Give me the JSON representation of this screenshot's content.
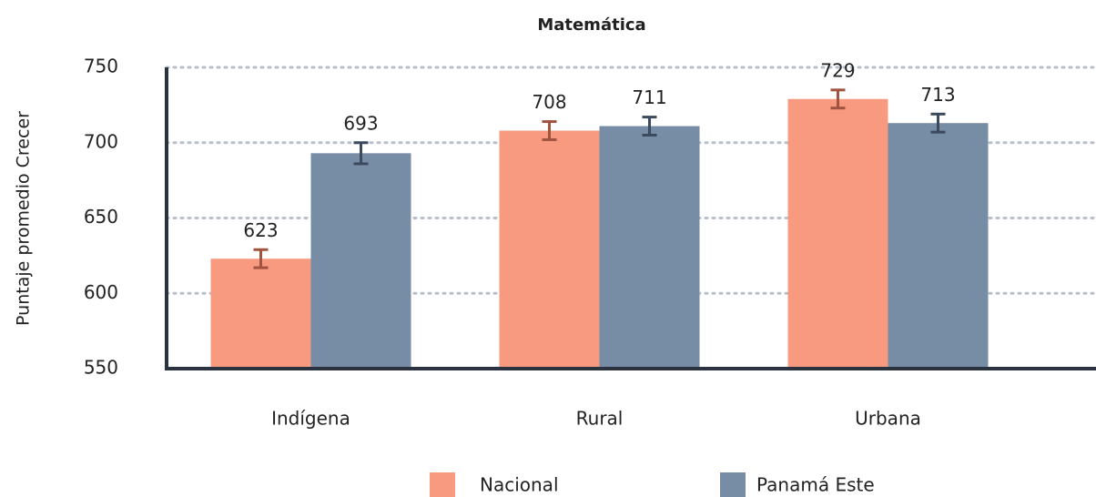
{
  "chart_data": {
    "type": "bar",
    "title": "Matemática",
    "y_label": "Puntaje promedio Crecer",
    "categories": [
      "Indígena",
      "Rural",
      "Urbana"
    ],
    "series": [
      {
        "name": "Nacional",
        "color": "#f79a80",
        "error_color": "#a0533f",
        "values": [
          623,
          708,
          729
        ],
        "errors": [
          6,
          6,
          6
        ]
      },
      {
        "name": "Panamá Este",
        "color": "#778ca5",
        "error_color": "#3b4a5d",
        "values": [
          693,
          711,
          713
        ],
        "errors": [
          7,
          6,
          6
        ]
      }
    ],
    "ylim": [
      550,
      750
    ],
    "yticks": [
      550,
      600,
      650,
      700,
      750
    ],
    "grid": true
  }
}
